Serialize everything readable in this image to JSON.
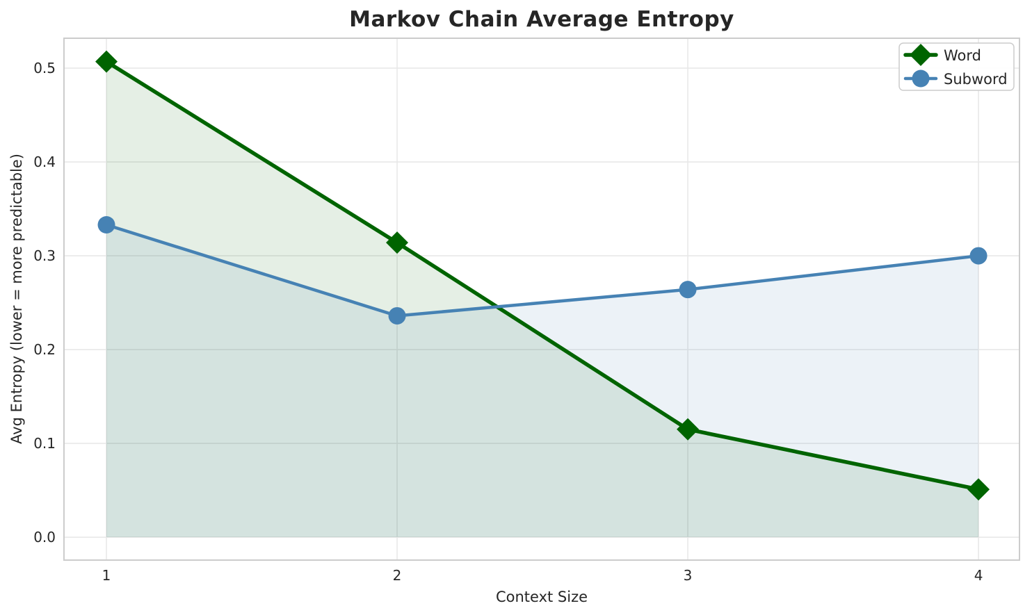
{
  "style": {
    "text_color": "#262626",
    "tick_color": "#262626",
    "grid_color": "#e8e8e8",
    "spine_color": "#cccccc",
    "background": "#ffffff",
    "legend_border": "#cccccc",
    "legend_background": "#ffffff"
  },
  "chart_data": {
    "type": "line",
    "title": "Markov Chain Average Entropy",
    "xlabel": "Context Size",
    "ylabel": "Avg Entropy (lower = more predictable)",
    "x": [
      1,
      2,
      3,
      4
    ],
    "series": [
      {
        "name": "Word",
        "values": [
          0.507,
          0.314,
          0.115,
          0.051
        ],
        "color": "#006400",
        "marker": "diamond",
        "linewidth": 5.5,
        "markersize": 16,
        "fill_to_zero": true,
        "fill_opacity": 0.1
      },
      {
        "name": "Subword",
        "values": [
          0.333,
          0.236,
          0.264,
          0.3
        ],
        "color": "#4682b4",
        "marker": "circle",
        "linewidth": 4.5,
        "markersize": 12.5,
        "fill_to_zero": true,
        "fill_opacity": 0.1
      }
    ],
    "xticks": {
      "values": [
        1,
        2,
        3,
        4
      ],
      "labels": [
        "1",
        "2",
        "3",
        "4"
      ]
    },
    "yticks": {
      "values": [
        0.0,
        0.1,
        0.2,
        0.3,
        0.4,
        0.5
      ],
      "labels": [
        "0.0",
        "0.1",
        "0.2",
        "0.3",
        "0.4",
        "0.5"
      ]
    },
    "xlim": [
      0.854,
      4.141
    ],
    "ylim": [
      -0.0244,
      0.5319
    ],
    "grid": true,
    "legend": {
      "position": "upper right",
      "entries": [
        "Word",
        "Subword"
      ]
    }
  }
}
